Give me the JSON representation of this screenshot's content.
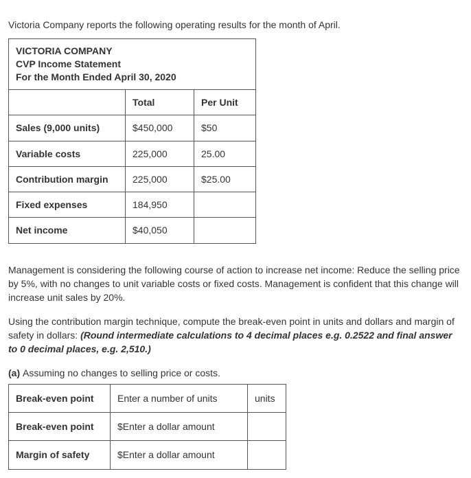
{
  "intro": "Victoria Company reports the following operating results for the month of April.",
  "statement": {
    "company": "VICTORIA COMPANY",
    "title": "CVP Income Statement",
    "period": "For the Month Ended April 30, 2020",
    "col_total": "Total",
    "col_perunit": "Per Unit",
    "rows": [
      {
        "label": "Sales (9,000 units)",
        "total": "$450,000",
        "per_unit": "$50"
      },
      {
        "label": "Variable costs",
        "total": "225,000",
        "per_unit": "25.00"
      },
      {
        "label": "Contribution margin",
        "total": "225,000",
        "per_unit": "$25.00"
      },
      {
        "label": "Fixed expenses",
        "total": "184,950",
        "per_unit": ""
      },
      {
        "label": "Net income",
        "total": "$40,050",
        "per_unit": ""
      }
    ]
  },
  "para1": "Management is considering the following course of action to increase net income: Reduce the selling price by 5%, with no changes to unit variable costs or fixed costs. Management is confident that this change will increase unit sales by 20%.",
  "para2_lead": "Using the contribution margin technique, compute the break-even point in units and dollars and margin of safety in dollars: ",
  "para2_bold": "(Round intermediate calculations to 4 decimal places e.g. 0.2522 and final answer to 0 decimal places, e.g. 2,510.)",
  "part_a_prefix": "(a) ",
  "part_a_text": "Assuming no changes to selling price or costs.",
  "answers": [
    {
      "label": "Break-even point",
      "placeholder": "Enter a number of units",
      "unit": "units"
    },
    {
      "label": "Break-even point",
      "placeholder": "$Enter a dollar amount",
      "unit": ""
    },
    {
      "label": "Margin of safety",
      "placeholder": "$Enter a dollar amount",
      "unit": ""
    }
  ]
}
